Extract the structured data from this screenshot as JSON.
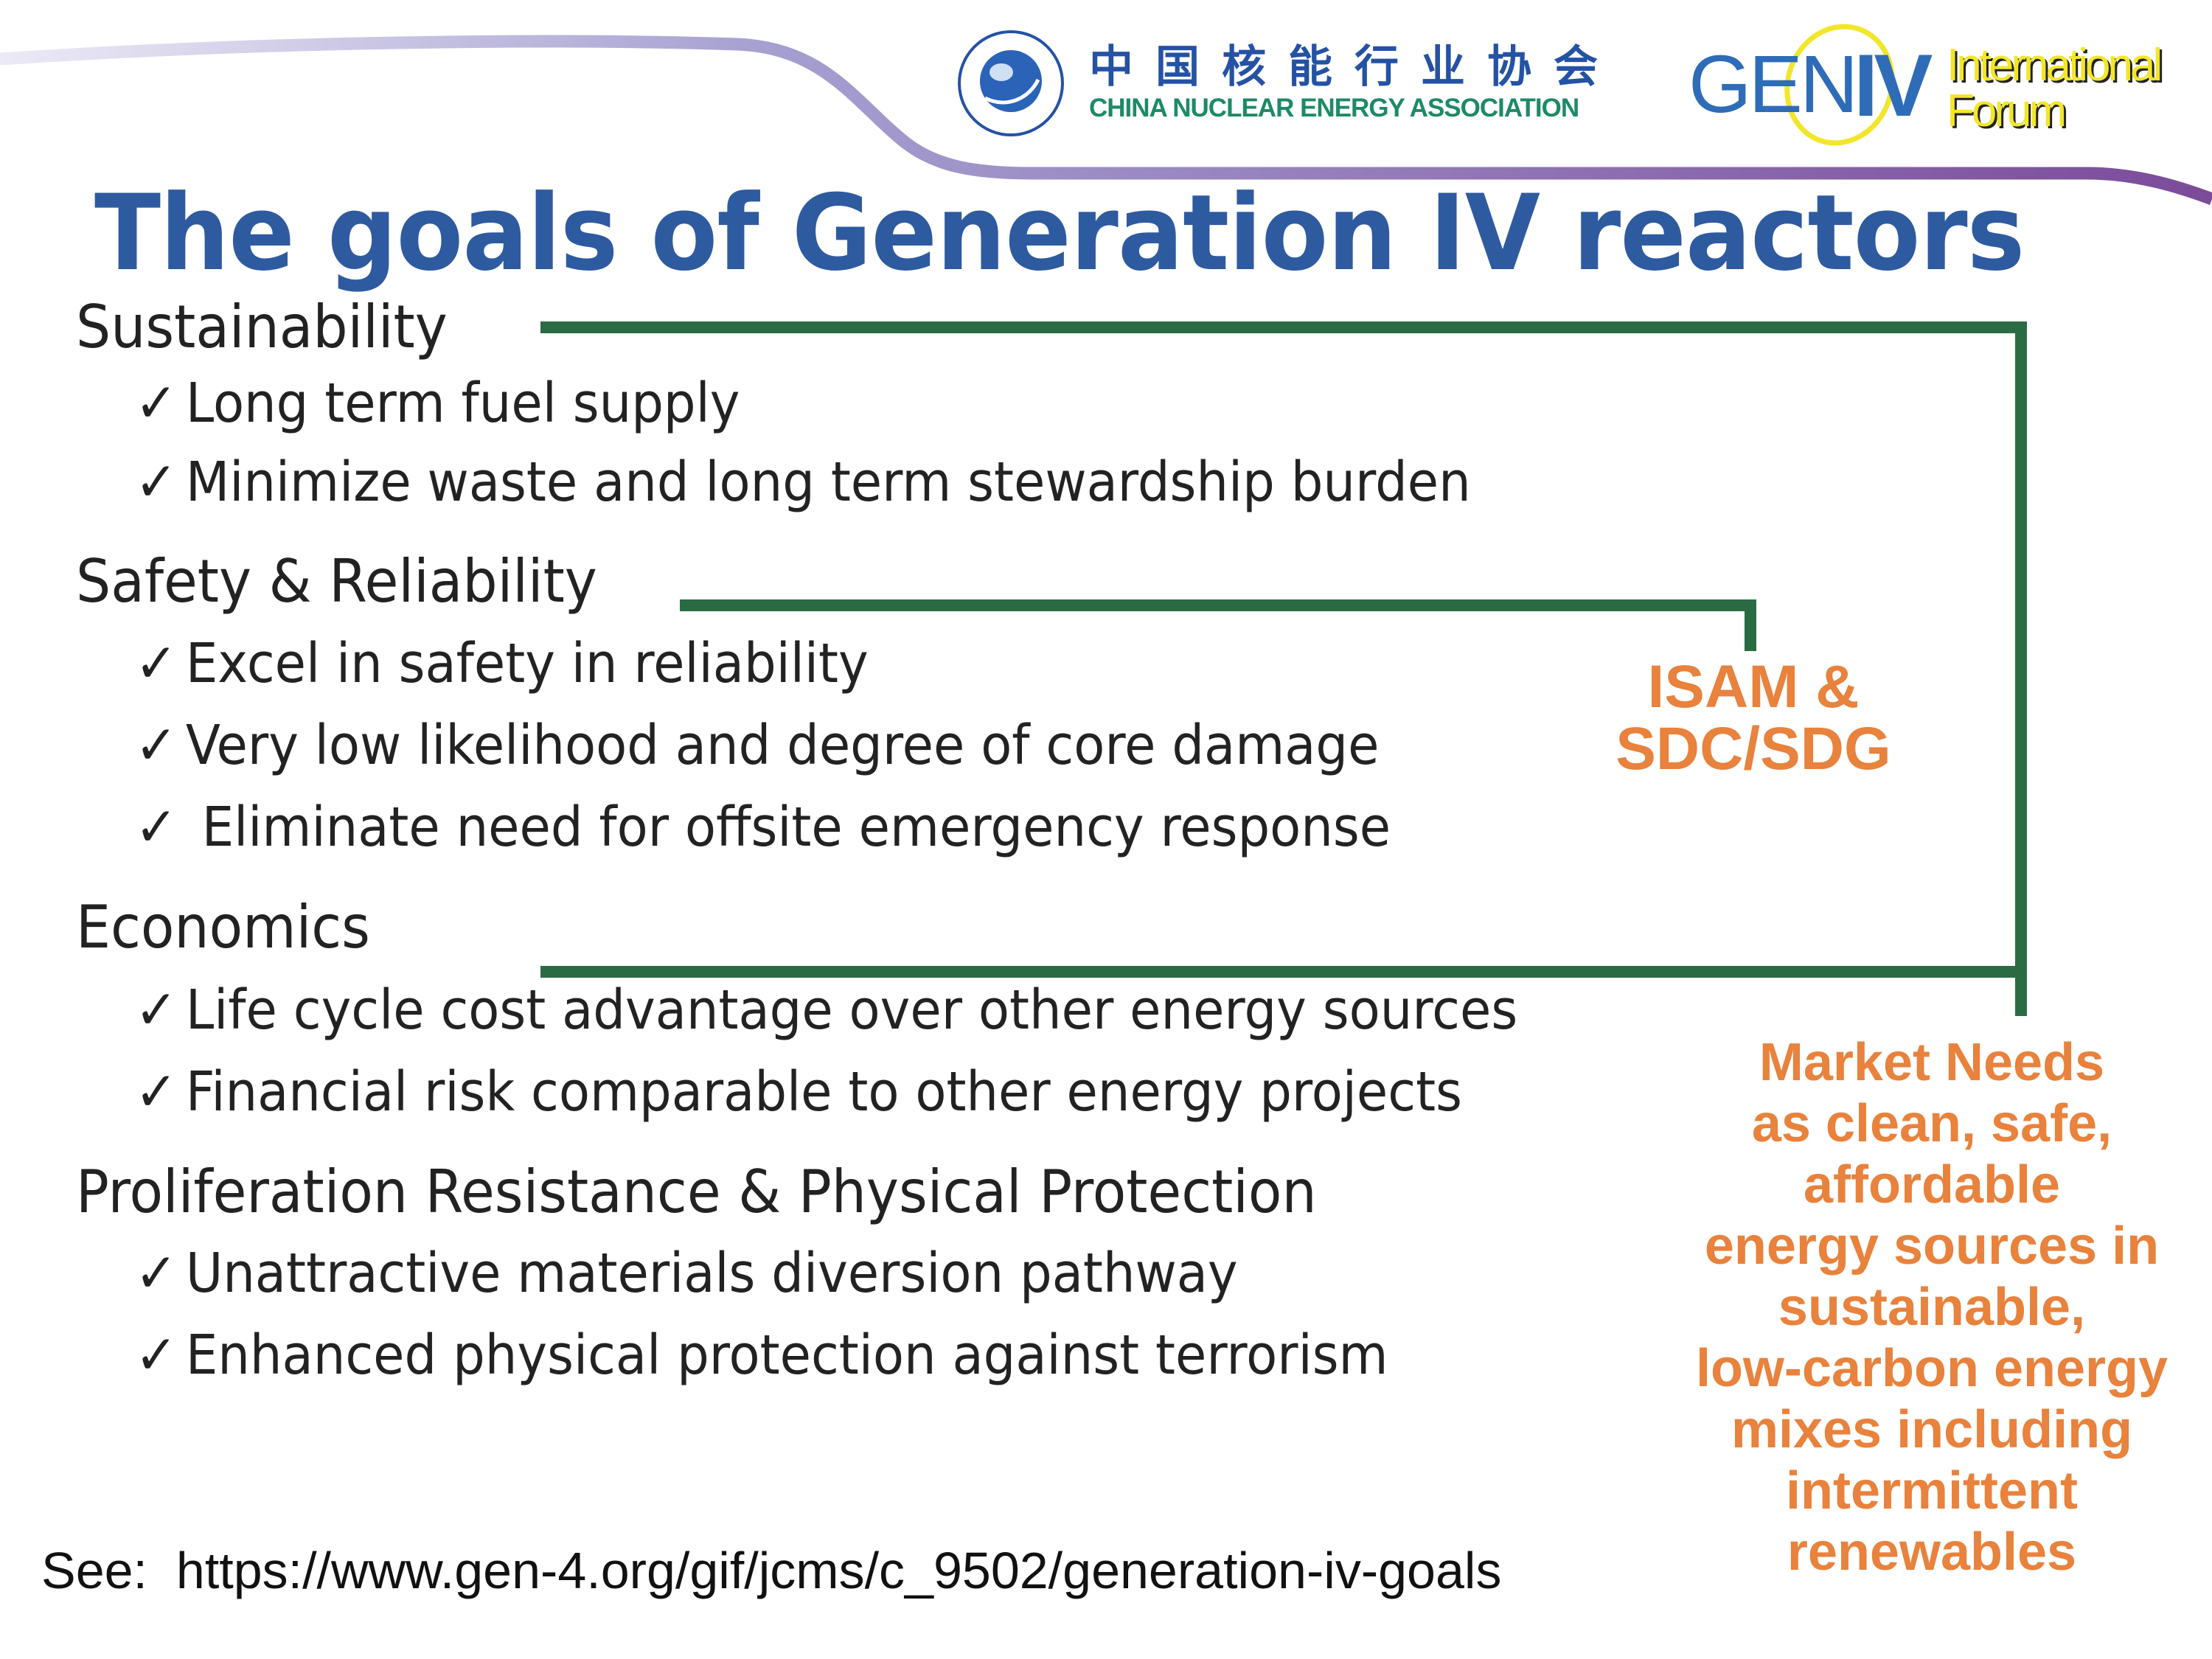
{
  "header": {
    "cnea_logo": {
      "chinese": "中国核能行业协会",
      "english": "CHINA NUCLEAR ENERGY ASSOCIATION",
      "seal_text": "China Nuclear Energy Association"
    },
    "gif_logo": {
      "gen": "GEN",
      "iv": "IV",
      "line1": "International",
      "line2": "Forum"
    }
  },
  "title": "The goals of Generation IV reactors",
  "sections": [
    {
      "heading": "Sustainability",
      "items": [
        "Long term fuel supply",
        "Minimize waste and long term stewardship burden"
      ]
    },
    {
      "heading": "Safety & Reliability",
      "items": [
        "Excel in safety in reliability",
        "Very low likelihood and degree of core damage",
        " Eliminate need for offsite emergency response"
      ]
    },
    {
      "heading": "Economics",
      "items": [
        "Life cycle cost advantage over other energy sources",
        "Financial risk comparable to other energy projects"
      ]
    },
    {
      "heading": "Proliferation Resistance & Physical Protection",
      "items": [
        "Unattractive materials diversion pathway",
        "Enhanced physical protection against terrorism"
      ]
    }
  ],
  "check_glyph": "✓",
  "callouts": {
    "isam": [
      "ISAM &",
      "SDC/SDG"
    ],
    "market": [
      "Market Needs",
      "as clean, safe,",
      "affordable",
      "energy sources in",
      "sustainable,",
      "low-carbon energy",
      "mixes including",
      "intermittent",
      "renewables"
    ]
  },
  "footer": {
    "see": "See:  https://www.gen-4.org/gif/jcms/c_9502/generation-iv-goals"
  },
  "colors": {
    "title": "#2e5aa0",
    "bracket": "#2b6b43",
    "callout": "#e8823c",
    "swoosh_start": "#d8d6ee",
    "swoosh_end": "#7b4b9a"
  }
}
